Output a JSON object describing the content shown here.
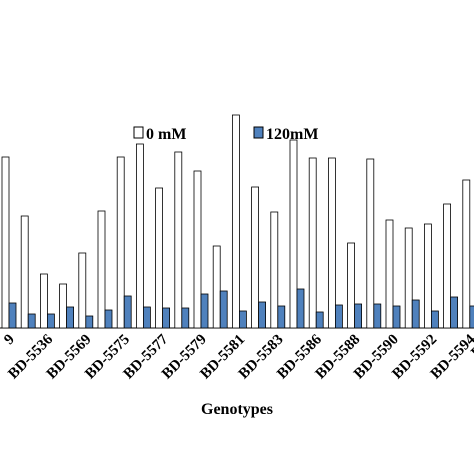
{
  "chart_data": {
    "type": "bar",
    "x_label": "Genotypes",
    "categories": [
      "9",
      null,
      "BD-5536",
      null,
      "BD-5569",
      null,
      "BD-5575",
      null,
      "BD-5577",
      null,
      "BD-5579",
      null,
      "BD-5581",
      null,
      "BD-5583",
      null,
      "BD-5586",
      null,
      "BD-5588",
      null,
      "BD-5590",
      null,
      "BD-5592",
      null,
      "BD-5594",
      "BD-"
    ],
    "series": [
      {
        "name": "0 mM",
        "color": "#ffffff",
        "values": [
          171,
          112,
          54,
          44,
          75,
          117,
          171,
          184,
          140,
          176,
          157,
          82,
          213,
          141,
          116,
          188,
          170,
          170,
          85,
          169,
          108,
          100,
          104,
          124,
          148,
          null
        ]
      },
      {
        "name": "120mM",
        "color": "#4f81bd",
        "values": [
          25,
          14,
          14,
          21,
          12,
          18,
          32,
          21,
          20,
          20,
          34,
          37,
          17,
          26,
          22,
          39,
          16,
          23,
          24,
          24,
          22,
          28,
          17,
          31,
          22,
          null
        ]
      }
    ],
    "ylim": [
      0,
      220
    ]
  }
}
